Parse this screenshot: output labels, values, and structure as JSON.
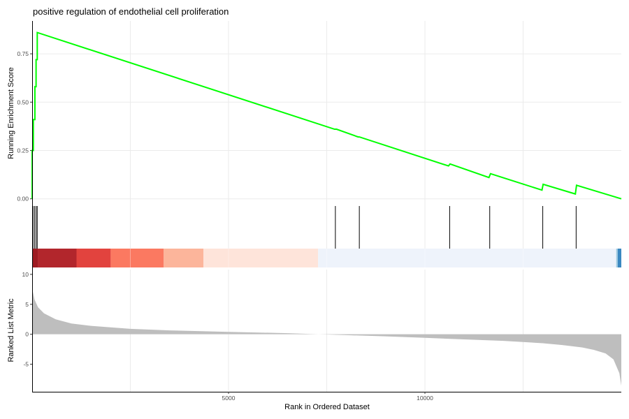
{
  "chart_data": {
    "type": "line",
    "title": "positive regulation of endothelial cell proliferation",
    "xlabel": "Rank in Ordered Dataset",
    "grid": "vertical",
    "x_range": [
      0,
      15000
    ],
    "x_ticks": [
      5000,
      10000
    ],
    "x_gridlines": [
      2500,
      5000,
      7500,
      10000,
      12500
    ],
    "panels": [
      {
        "name": "running-score",
        "ylabel": "Running Enrichment Score",
        "ylim": [
          -0.03,
          0.92
        ],
        "y_ticks": [
          0.0,
          0.25,
          0.5,
          0.75
        ],
        "y_tick_labels": [
          "0.00",
          "0.25",
          "0.50",
          "0.75"
        ],
        "series": [
          {
            "color": "#00ff00",
            "x": [
              0,
              0,
              30,
              30,
              70,
              70,
              100,
              100,
              130,
              130,
              7700,
              7750,
              8300,
              8330,
              10600,
              10640,
              11630,
              11670,
              12980,
              13010,
              13830,
              13860,
              15000
            ],
            "y": [
              0.0,
              0.25,
              0.25,
              0.41,
              0.41,
              0.58,
              0.58,
              0.72,
              0.72,
              0.86,
              0.36,
              0.36,
              0.32,
              0.32,
              0.17,
              0.18,
              0.11,
              0.13,
              0.045,
              0.075,
              0.025,
              0.07,
              0.0
            ]
          }
        ]
      },
      {
        "name": "gene-hits",
        "hit_positions": [
          20,
          60,
          100,
          130,
          7720,
          8330,
          10630,
          11650,
          13000,
          13850
        ]
      },
      {
        "name": "rank-color-band",
        "segments": [
          {
            "start": 0,
            "end": 150,
            "color": "#9e1b22"
          },
          {
            "start": 150,
            "end": 1130,
            "color": "#b2262c"
          },
          {
            "start": 1130,
            "end": 2000,
            "color": "#e2433e"
          },
          {
            "start": 2000,
            "end": 3350,
            "color": "#fb7961"
          },
          {
            "start": 3350,
            "end": 4360,
            "color": "#fcb59b"
          },
          {
            "start": 4360,
            "end": 7280,
            "color": "#fee4da"
          },
          {
            "start": 7280,
            "end": 14870,
            "color": "#eef3fb"
          },
          {
            "start": 14870,
            "end": 14910,
            "color": "#9ecae1"
          },
          {
            "start": 14910,
            "end": 15000,
            "color": "#3a88c1"
          }
        ]
      },
      {
        "name": "ranked-metric",
        "ylabel": "Ranked List Metric",
        "ylim": [
          -9.6,
          10.8
        ],
        "y_ticks": [
          -5,
          0,
          5,
          10
        ],
        "y_tick_labels": [
          "-5",
          "0",
          "5",
          "10"
        ],
        "fill_color": "#bebebe",
        "series": [
          {
            "x": [
              0,
              20,
              60,
              150,
              300,
              600,
              1000,
              1500,
              2500,
              3500,
              5000,
              6500,
              7300,
              8000,
              9000,
              10000,
              11000,
              12000,
              13000,
              13500,
              14000,
              14300,
              14600,
              14800,
              14950,
              15000
            ],
            "y": [
              8.0,
              7.0,
              5.8,
              4.5,
              3.5,
              2.5,
              1.8,
              1.4,
              0.9,
              0.65,
              0.4,
              0.18,
              0.0,
              -0.15,
              -0.35,
              -0.6,
              -0.85,
              -1.1,
              -1.5,
              -1.8,
              -2.2,
              -2.6,
              -3.2,
              -4.2,
              -6.5,
              -8.6
            ]
          }
        ]
      }
    ]
  }
}
